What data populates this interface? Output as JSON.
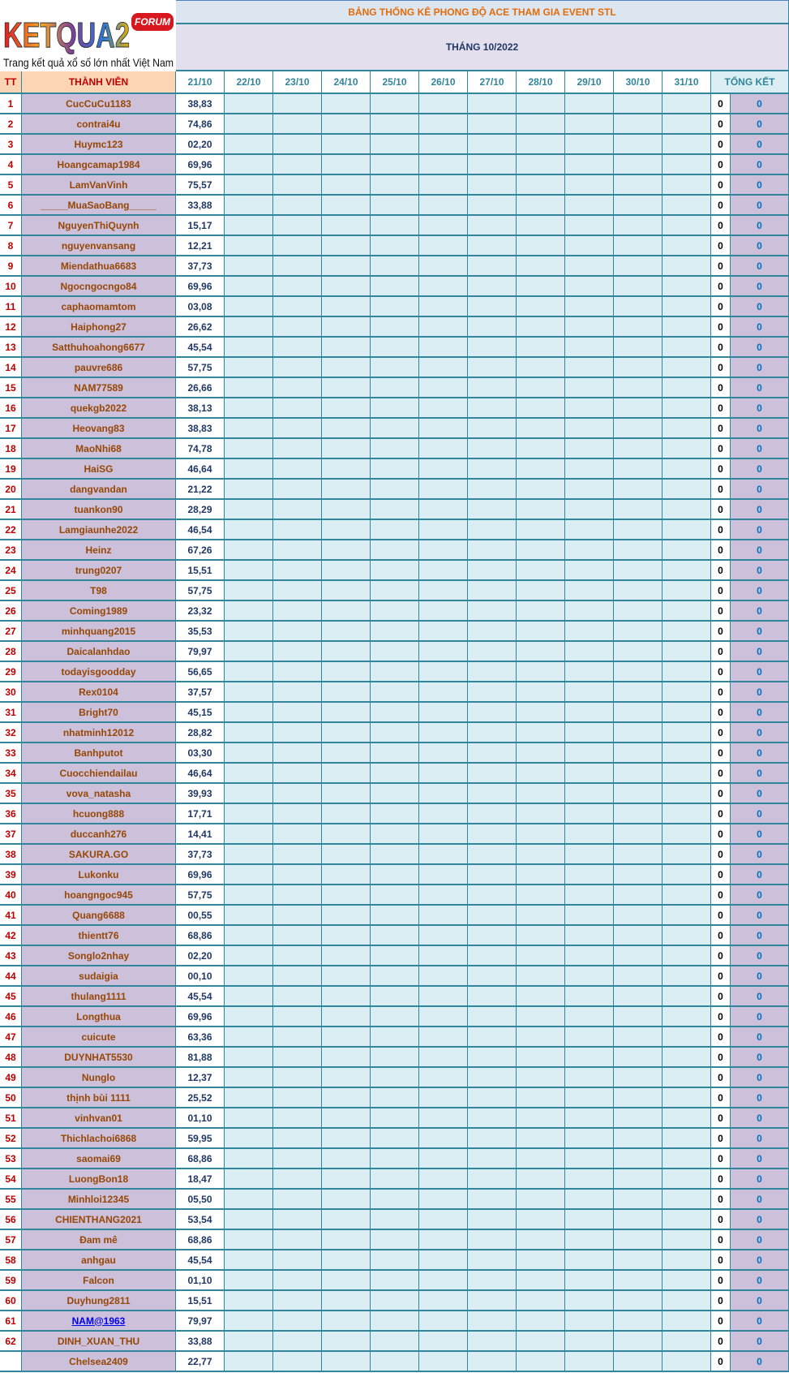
{
  "logo": {
    "text": "KETQUA2",
    "badge": "FORUM",
    "tagline": "Trang kết quả xổ số lớn nhất Việt Nam"
  },
  "header": {
    "title": "BẢNG THỐNG KÊ PHONG ĐỘ ACE THAM GIA EVENT STL",
    "subtitle": "THÁNG 10/2022"
  },
  "table": {
    "columns": [
      "TT",
      "THÀNH VIÊN",
      "21/10",
      "22/10",
      "23/10",
      "24/10",
      "25/10",
      "26/10",
      "27/10",
      "28/10",
      "29/10",
      "30/10",
      "31/10",
      "TỔNG KẾT"
    ],
    "rows": [
      [
        1,
        "CucCuCu1183",
        "38,83",
        0,
        0
      ],
      [
        2,
        "contrai4u",
        "74,86",
        0,
        0
      ],
      [
        3,
        "Huymc123",
        "02,20",
        0,
        0
      ],
      [
        4,
        "Hoangcamap1984",
        "69,96",
        0,
        0
      ],
      [
        5,
        "LamVanVinh",
        "75,57",
        0,
        0
      ],
      [
        6,
        "_____MuaSaoBang_____",
        "33,88",
        0,
        0
      ],
      [
        7,
        "NguyenThiQuynh",
        "15,17",
        0,
        0
      ],
      [
        8,
        "nguyenvansang",
        "12,21",
        0,
        0
      ],
      [
        9,
        "Miendathua6683",
        "37,73",
        0,
        0
      ],
      [
        10,
        "Ngocngocngo84",
        "69,96",
        0,
        0
      ],
      [
        11,
        "caphaomamtom",
        "03,08",
        0,
        0
      ],
      [
        12,
        "Haiphong27",
        "26,62",
        0,
        0
      ],
      [
        13,
        "Satthuhoahong6677",
        "45,54",
        0,
        0
      ],
      [
        14,
        "pauvre686",
        "57,75",
        0,
        0
      ],
      [
        15,
        "NAM77589",
        "26,66",
        0,
        0
      ],
      [
        16,
        "quekgb2022",
        "38,13",
        0,
        0
      ],
      [
        17,
        "Heovang83",
        "38,83",
        0,
        0
      ],
      [
        18,
        "MaoNhi68",
        "74,78",
        0,
        0
      ],
      [
        19,
        "HaiSG",
        "46,64",
        0,
        0
      ],
      [
        20,
        "dangvandan",
        "21,22",
        0,
        0
      ],
      [
        21,
        "tuankon90",
        "28,29",
        0,
        0
      ],
      [
        22,
        "Lamgiaunhe2022",
        "46,54",
        0,
        0
      ],
      [
        23,
        "Heinz",
        "67,26",
        0,
        0
      ],
      [
        24,
        "trung0207",
        "15,51",
        0,
        0
      ],
      [
        25,
        "T98",
        "57,75",
        0,
        0
      ],
      [
        26,
        "Coming1989",
        "23,32",
        0,
        0
      ],
      [
        27,
        "minhquang2015",
        "35,53",
        0,
        0
      ],
      [
        28,
        "Daicalanhdao",
        "79,97",
        0,
        0
      ],
      [
        29,
        "todayisgoodday",
        "56,65",
        0,
        0
      ],
      [
        30,
        "Rex0104",
        "37,57",
        0,
        0
      ],
      [
        31,
        "Bright70",
        "45,15",
        0,
        0
      ],
      [
        32,
        "nhatminh12012",
        "28,82",
        0,
        0
      ],
      [
        33,
        "Banhputot",
        "03,30",
        0,
        0
      ],
      [
        34,
        "Cuocchiendailau",
        "46,64",
        0,
        0
      ],
      [
        35,
        "vova_natasha",
        "39,93",
        0,
        0
      ],
      [
        36,
        "hcuong888",
        "17,71",
        0,
        0
      ],
      [
        37,
        "duccanh276",
        "14,41",
        0,
        0
      ],
      [
        38,
        "SAKURA.GO",
        "37,73",
        0,
        0
      ],
      [
        39,
        "Lukonku",
        "69,96",
        0,
        0
      ],
      [
        40,
        "hoangngoc945",
        "57,75",
        0,
        0
      ],
      [
        41,
        "Quang6688",
        "00,55",
        0,
        0
      ],
      [
        42,
        "thientt76",
        "68,86",
        0,
        0
      ],
      [
        43,
        "Songlo2nhay",
        "02,20",
        0,
        0
      ],
      [
        44,
        "sudaigia",
        "00,10",
        0,
        0
      ],
      [
        45,
        "thulang1111",
        "45,54",
        0,
        0
      ],
      [
        46,
        "Longthua",
        "69,96",
        0,
        0
      ],
      [
        47,
        "cuicute",
        "63,36",
        0,
        0
      ],
      [
        48,
        "DUYNHAT5530",
        "81,88",
        0,
        0
      ],
      [
        49,
        "Nunglo",
        "12,37",
        0,
        0
      ],
      [
        50,
        "thịnh bùi 1111",
        "25,52",
        0,
        0
      ],
      [
        51,
        "vinhvan01",
        "01,10",
        0,
        0
      ],
      [
        52,
        "Thichlachoi6868",
        "59,95",
        0,
        0
      ],
      [
        53,
        "saomai69",
        "68,86",
        0,
        0
      ],
      [
        54,
        "LuongBon18",
        "18,47",
        0,
        0
      ],
      [
        55,
        "Minhloi12345",
        "05,50",
        0,
        0
      ],
      [
        56,
        "CHIENTHANG2021",
        "53,54",
        0,
        0
      ],
      [
        57,
        "Đam mê",
        "68,86",
        0,
        0
      ],
      [
        58,
        "anhgau",
        "45,54",
        0,
        0
      ],
      [
        59,
        "Falcon",
        "01,10",
        0,
        0
      ],
      [
        60,
        "Duyhung2811",
        "15,51",
        0,
        0
      ],
      [
        61,
        "NAM@1963",
        "79,97",
        0,
        0
      ],
      [
        62,
        "DINH_XUAN_THU",
        "33,88",
        0,
        0
      ],
      [
        null,
        "Chelsea2409",
        "22,77",
        0,
        0
      ]
    ]
  }
}
